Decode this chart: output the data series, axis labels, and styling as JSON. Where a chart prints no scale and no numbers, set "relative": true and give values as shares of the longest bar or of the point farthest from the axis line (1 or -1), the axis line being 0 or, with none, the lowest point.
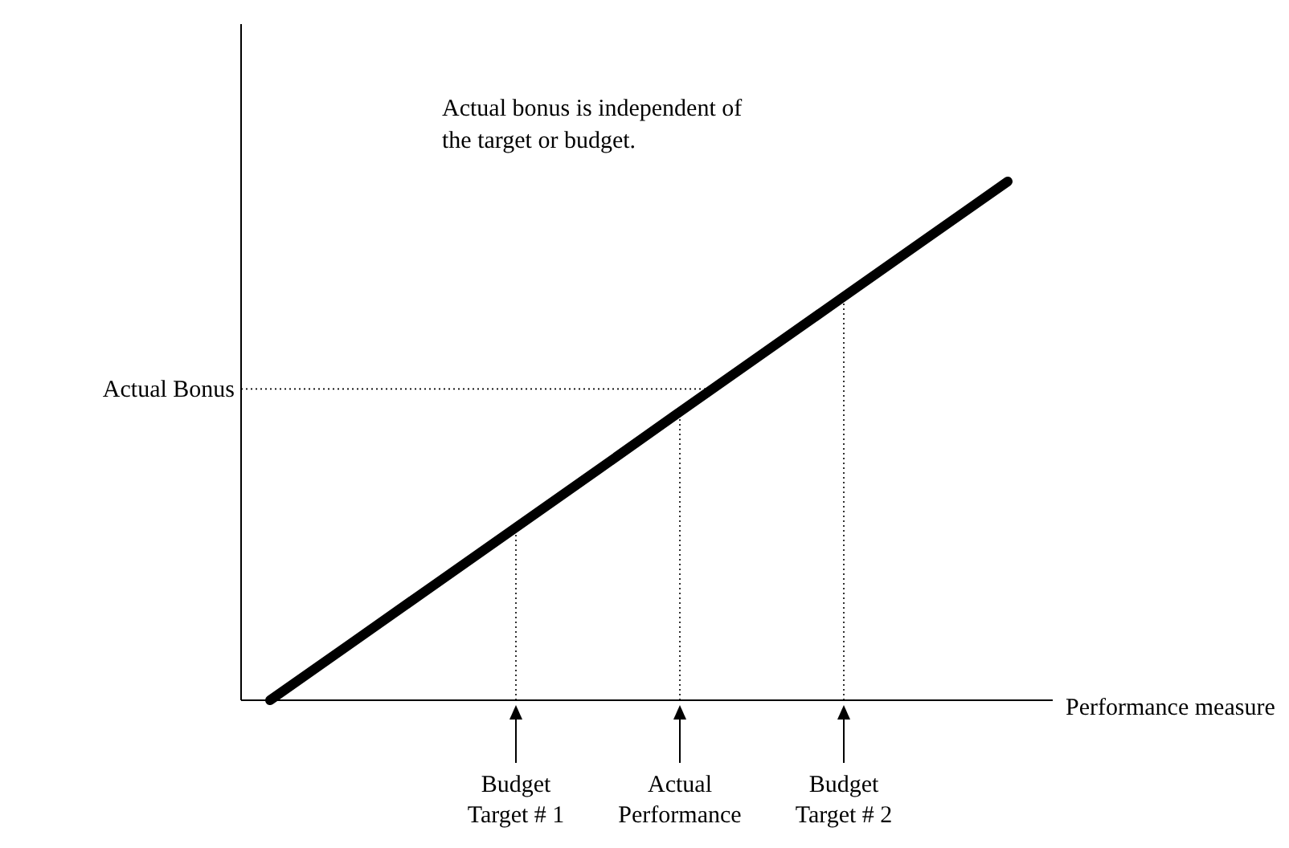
{
  "chart_data": {
    "type": "line",
    "relative": true,
    "xlabel": "Performance measure",
    "categories": [
      null,
      null,
      null,
      "Budget\nTarget # 1",
      null,
      "Actual\nPerformance",
      null,
      "Budget\nTarget # 2",
      null,
      null
    ],
    "series": [
      {
        "color": "#000000",
        "values": [
          0,
          0.111,
          0.222,
          0.333,
          0.444,
          0.556,
          0.667,
          0.778,
          0.889,
          1
        ]
      }
    ],
    "marker": "none",
    "line_style": "solid",
    "ref_lines": [
      {
        "axis": "y",
        "value": 0.6,
        "label": "Actual Bonus",
        "line_style": "dotted"
      },
      {
        "axis": "x",
        "value": "Budget\nTarget # 1",
        "line_style": "dotted"
      },
      {
        "axis": "x",
        "value": "Actual\nPerformance",
        "line_style": "dotted"
      },
      {
        "axis": "x",
        "value": "Budget\nTarget # 2",
        "line_style": "dotted"
      }
    ],
    "annotations": [
      "Actual bonus is independent of\nthe target or budget."
    ]
  }
}
